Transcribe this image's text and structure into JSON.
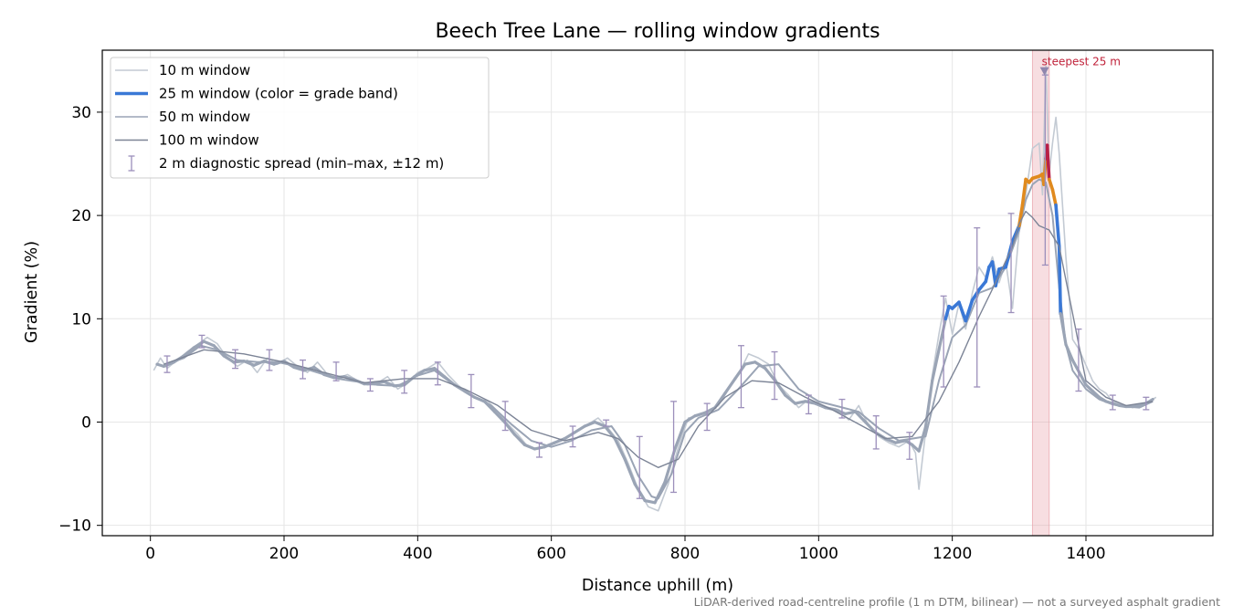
{
  "chart_data": {
    "type": "line",
    "title": "Beech Tree Lane — rolling window gradients",
    "xlabel": "Distance uphill (m)",
    "ylabel": "Gradient (%)",
    "xlim": [
      -72,
      1590
    ],
    "ylim": [
      -11,
      36
    ],
    "x_ticks": [
      0,
      200,
      400,
      600,
      800,
      1000,
      1200,
      1400
    ],
    "x_tick_labels": [
      "0",
      "200",
      "400",
      "600",
      "800",
      "1000",
      "1200",
      "1400"
    ],
    "y_ticks": [
      -10,
      0,
      10,
      20,
      30
    ],
    "y_tick_labels": [
      "−10",
      "0",
      "10",
      "20",
      "30"
    ],
    "grid": true,
    "legend": {
      "placement": "top-left",
      "entries": [
        {
          "label": "10 m window",
          "color": "#c3cad3",
          "kind": "line"
        },
        {
          "label": "25 m window (color = grade band)",
          "color": "#3a78d6",
          "kind": "line-thick"
        },
        {
          "label": "50 m window",
          "color": "#9aa4b5",
          "kind": "line"
        },
        {
          "label": "100 m window",
          "color": "#7c8496",
          "kind": "line"
        },
        {
          "label": "2 m diagnostic spread (min–max, ±12 m)",
          "color": "#9c8fbb",
          "kind": "errorbar"
        }
      ]
    },
    "colors": {
      "w10": "#c3cad3",
      "w25_gray": "#9aa4b5",
      "w25_blue": "#3a78d6",
      "w25_orange": "#e08a1e",
      "w25_red": "#b81f47",
      "w50": "#9aa4b5",
      "w100": "#7c8496",
      "errorbar": "#9c8fbb",
      "highlight": "#e8a0a8",
      "annotation": "#c0223a"
    },
    "grade_bands": [
      {
        "name": "below 10 %",
        "color": "#9aa4b5",
        "min": -100,
        "max": 10
      },
      {
        "name": "10–20 %",
        "color": "#3a78d6",
        "min": 10,
        "max": 20
      },
      {
        "name": "20–25 %",
        "color": "#e08a1e",
        "min": 20,
        "max": 25
      },
      {
        "name": "25 % and above",
        "color": "#b81f47",
        "min": 25,
        "max": 100
      }
    ],
    "highlight_span": {
      "x0": 1320,
      "x1": 1345
    },
    "annotation": {
      "text": "steepest 25 m",
      "x": 1338,
      "y": 34.0
    },
    "series": [
      {
        "name": "10 m window",
        "x": [
          5,
          15,
          25,
          40,
          55,
          70,
          85,
          100,
          115,
          130,
          145,
          160,
          175,
          190,
          205,
          220,
          235,
          250,
          265,
          280,
          295,
          310,
          325,
          340,
          355,
          370,
          385,
          400,
          415,
          430,
          445,
          460,
          475,
          490,
          505,
          520,
          535,
          550,
          565,
          580,
          595,
          610,
          625,
          640,
          655,
          670,
          685,
          700,
          715,
          730,
          745,
          760,
          775,
          790,
          805,
          820,
          835,
          850,
          865,
          880,
          895,
          910,
          925,
          940,
          955,
          970,
          985,
          1000,
          1015,
          1030,
          1045,
          1060,
          1075,
          1090,
          1105,
          1120,
          1135,
          1145,
          1150,
          1160,
          1170,
          1180,
          1190,
          1200,
          1210,
          1220,
          1230,
          1240,
          1250,
          1260,
          1270,
          1280,
          1290,
          1300,
          1310,
          1320,
          1330,
          1335,
          1340,
          1345,
          1350,
          1355,
          1360,
          1370,
          1380,
          1390,
          1400,
          1410,
          1420,
          1430,
          1440,
          1450,
          1460,
          1470,
          1480,
          1490,
          1505
        ],
        "y": [
          5.0,
          6.2,
          5.2,
          6.0,
          6.8,
          7.5,
          8.2,
          7.6,
          6.2,
          5.4,
          6.0,
          4.8,
          6.2,
          5.6,
          6.2,
          5.4,
          4.8,
          5.8,
          4.6,
          4.2,
          4.6,
          4.0,
          3.6,
          3.8,
          4.4,
          3.2,
          3.8,
          4.8,
          5.2,
          5.8,
          4.6,
          3.6,
          2.8,
          2.2,
          2.0,
          1.0,
          -0.2,
          -1.2,
          -2.4,
          -2.6,
          -2.2,
          -1.8,
          -1.4,
          -0.8,
          -0.2,
          0.4,
          -0.6,
          -1.8,
          -4.0,
          -6.5,
          -8.2,
          -8.6,
          -6.0,
          -2.4,
          0.4,
          0.6,
          1.0,
          1.6,
          3.2,
          4.6,
          6.6,
          6.2,
          5.6,
          3.6,
          2.6,
          1.4,
          2.2,
          1.8,
          1.4,
          1.2,
          0.2,
          1.6,
          -0.4,
          -1.4,
          -2.0,
          -2.4,
          -1.8,
          -3.0,
          -6.5,
          -1.0,
          4.5,
          8.5,
          12.0,
          8.5,
          11.5,
          9.0,
          12.5,
          15.0,
          14.0,
          16.0,
          13.5,
          15.5,
          11.0,
          18.5,
          22.0,
          26.5,
          27.0,
          22.0,
          34.5,
          24.0,
          27.0,
          29.5,
          26.0,
          16.0,
          8.0,
          7.0,
          5.5,
          4.0,
          3.2,
          2.8,
          2.0,
          1.8,
          1.6,
          1.4,
          1.6,
          1.8,
          2.4
        ]
      },
      {
        "name": "25 m window",
        "x": [
          10,
          20,
          35,
          50,
          65,
          80,
          95,
          110,
          125,
          140,
          155,
          170,
          185,
          200,
          215,
          230,
          245,
          260,
          275,
          290,
          305,
          320,
          335,
          350,
          365,
          380,
          395,
          410,
          425,
          440,
          455,
          470,
          485,
          500,
          515,
          530,
          545,
          560,
          575,
          590,
          605,
          620,
          635,
          650,
          665,
          680,
          695,
          710,
          725,
          740,
          755,
          770,
          785,
          800,
          815,
          830,
          845,
          860,
          875,
          890,
          905,
          920,
          935,
          950,
          965,
          980,
          995,
          1010,
          1025,
          1040,
          1055,
          1070,
          1085,
          1100,
          1115,
          1130,
          1140,
          1150,
          1160,
          1170,
          1180,
          1190,
          1195,
          1200,
          1210,
          1220,
          1230,
          1240,
          1250,
          1255,
          1260,
          1265,
          1270,
          1280,
          1290,
          1300,
          1305,
          1310,
          1315,
          1320,
          1330,
          1335,
          1337,
          1340,
          1342,
          1345,
          1350,
          1355,
          1360,
          1362,
          1370,
          1380,
          1390,
          1400,
          1410,
          1420,
          1430,
          1440,
          1450,
          1460,
          1470,
          1480,
          1490,
          1500
        ],
        "y": [
          5.6,
          5.4,
          5.8,
          6.4,
          7.2,
          7.8,
          7.4,
          6.4,
          5.8,
          5.9,
          5.5,
          5.9,
          5.6,
          5.9,
          5.3,
          5.0,
          5.3,
          4.6,
          4.3,
          4.4,
          4.1,
          3.7,
          3.7,
          3.9,
          3.5,
          3.6,
          4.4,
          5.0,
          5.2,
          4.4,
          3.6,
          3.0,
          2.4,
          2.0,
          1.0,
          0.0,
          -1.2,
          -2.2,
          -2.6,
          -2.4,
          -2.0,
          -1.6,
          -1.0,
          -0.4,
          0.0,
          -0.4,
          -1.6,
          -3.6,
          -6.0,
          -7.6,
          -7.8,
          -5.8,
          -2.6,
          0.0,
          0.6,
          0.9,
          1.4,
          2.8,
          4.2,
          5.6,
          5.8,
          5.2,
          4.0,
          2.6,
          1.8,
          2.0,
          1.8,
          1.4,
          1.2,
          0.8,
          1.0,
          0.0,
          -1.0,
          -1.6,
          -2.0,
          -1.8,
          -2.2,
          -2.8,
          -0.5,
          4.0,
          7.0,
          10.0,
          11.2,
          11.0,
          11.6,
          9.8,
          11.8,
          12.8,
          13.6,
          15.0,
          15.5,
          13.2,
          14.8,
          15.0,
          17.5,
          19.0,
          21.0,
          23.5,
          23.2,
          23.6,
          23.8,
          24.0,
          23.0,
          25.5,
          26.8,
          23.5,
          22.5,
          21.0,
          17.0,
          10.5,
          7.5,
          6.0,
          4.8,
          3.6,
          3.0,
          2.4,
          2.0,
          1.8,
          1.6,
          1.5,
          1.5,
          1.6,
          1.8,
          2.2
        ]
      },
      {
        "name": "50 m window",
        "x": [
          20,
          50,
          75,
          100,
          130,
          160,
          190,
          220,
          250,
          280,
          310,
          340,
          370,
          400,
          425,
          450,
          480,
          510,
          540,
          570,
          600,
          630,
          660,
          690,
          710,
          730,
          750,
          760,
          780,
          800,
          820,
          850,
          880,
          910,
          940,
          970,
          1000,
          1030,
          1060,
          1090,
          1120,
          1140,
          1160,
          1180,
          1200,
          1220,
          1240,
          1260,
          1280,
          1300,
          1310,
          1320,
          1330,
          1340,
          1350,
          1360,
          1370,
          1380,
          1400,
          1420,
          1440,
          1460,
          1480,
          1500
        ],
        "y": [
          5.5,
          6.2,
          7.4,
          7.0,
          6.0,
          5.8,
          5.8,
          5.4,
          4.8,
          4.2,
          3.9,
          3.6,
          3.5,
          4.5,
          5.0,
          3.8,
          2.6,
          1.6,
          -0.2,
          -1.8,
          -2.4,
          -1.8,
          -0.8,
          -0.4,
          -2.2,
          -5.2,
          -7.2,
          -7.4,
          -5.0,
          -1.0,
          0.4,
          1.2,
          3.2,
          5.4,
          5.6,
          3.2,
          2.0,
          1.5,
          1.0,
          -0.6,
          -1.8,
          -1.6,
          -1.4,
          4.0,
          8.2,
          9.4,
          12.5,
          13.0,
          15.0,
          18.5,
          21.5,
          23.0,
          23.5,
          23.2,
          20.0,
          13.0,
          7.5,
          5.0,
          3.2,
          2.2,
          1.7,
          1.5,
          1.4,
          2.0
        ]
      },
      {
        "name": "100 m window",
        "x": [
          20,
          80,
          140,
          200,
          260,
          320,
          380,
          430,
          470,
          520,
          570,
          620,
          670,
          700,
          730,
          760,
          790,
          820,
          860,
          900,
          940,
          980,
          1020,
          1060,
          1100,
          1140,
          1180,
          1210,
          1240,
          1270,
          1290,
          1300,
          1310,
          1320,
          1330,
          1345,
          1360,
          1380,
          1400,
          1430,
          1460,
          1500
        ],
        "y": [
          5.6,
          7.0,
          6.6,
          5.8,
          4.8,
          3.8,
          4.2,
          4.2,
          3.2,
          1.6,
          -0.8,
          -1.8,
          -1.0,
          -1.6,
          -3.4,
          -4.4,
          -3.6,
          -0.4,
          2.4,
          4.0,
          3.8,
          2.4,
          1.2,
          -0.2,
          -1.6,
          -1.4,
          2.0,
          5.8,
          10.2,
          14.2,
          17.0,
          19.2,
          20.4,
          19.8,
          19.0,
          18.6,
          17.0,
          10.5,
          4.0,
          2.4,
          1.6,
          2.0
        ]
      }
    ],
    "errorbars": {
      "name": "2 m diagnostic spread (min–max, ±12 m)",
      "x": [
        25,
        77,
        127,
        178,
        228,
        278,
        329,
        380,
        430,
        480,
        531,
        582,
        632,
        682,
        732,
        783,
        833,
        884,
        934,
        985,
        1035,
        1086,
        1136,
        1187,
        1237,
        1288,
        1339,
        1389,
        1440,
        1490
      ],
      "center": [
        5.8,
        7.8,
        6.2,
        6.0,
        5.2,
        4.8,
        3.7,
        4.0,
        4.7,
        2.9,
        0.6,
        -2.6,
        -1.4,
        -0.2,
        -4.6,
        -2.4,
        0.4,
        4.4,
        4.8,
        1.6,
        1.4,
        -1.0,
        -2.2,
        7.5,
        11.0,
        15.2,
        24.8,
        6.0,
        2.0,
        1.6
      ],
      "low": [
        4.8,
        7.2,
        5.2,
        5.0,
        4.2,
        4.0,
        3.0,
        2.8,
        3.6,
        1.4,
        -0.8,
        -3.4,
        -2.4,
        -0.4,
        -7.4,
        -6.8,
        -0.8,
        1.4,
        2.2,
        0.8,
        0.4,
        -2.6,
        -3.6,
        3.4,
        3.4,
        10.6,
        15.2,
        3.0,
        1.2,
        1.2
      ],
      "high": [
        6.4,
        8.4,
        7.0,
        7.0,
        6.0,
        5.8,
        4.2,
        5.0,
        5.8,
        4.6,
        2.0,
        -2.0,
        -0.4,
        0.2,
        -1.4,
        2.0,
        1.8,
        7.4,
        6.8,
        2.6,
        2.2,
        0.6,
        -1.0,
        12.2,
        18.8,
        20.2,
        33.6,
        9.0,
        2.6,
        2.4
      ]
    }
  }
}
